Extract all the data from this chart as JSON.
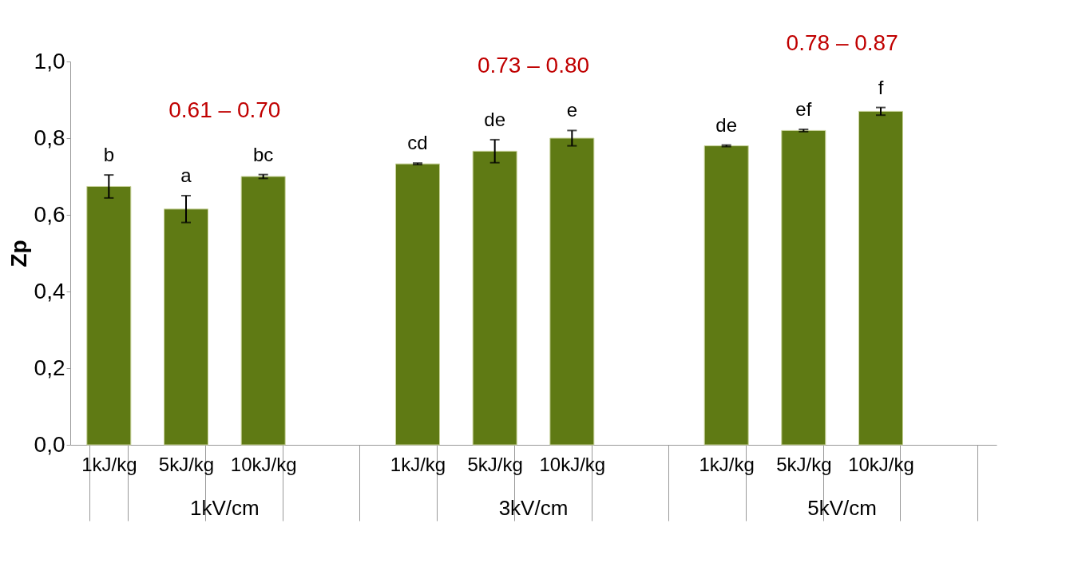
{
  "chart_data": {
    "type": "bar",
    "ylabel": "Zp",
    "categories": [
      "1kJ/kg",
      "5kJ/kg",
      "10kJ/kg",
      null,
      "1kJ/kg",
      "5kJ/kg",
      "10kJ/kg",
      null,
      "1kJ/kg",
      "5kJ/kg",
      "10kJ/kg",
      null
    ],
    "values": [
      0.674,
      0.615,
      0.7,
      null,
      0.733,
      0.766,
      0.8,
      null,
      0.78,
      0.82,
      0.87,
      null
    ],
    "errors": [
      0.03,
      0.035,
      0.005,
      null,
      0.002,
      0.03,
      0.02,
      null,
      0.002,
      0.003,
      0.01,
      null
    ],
    "value_labels": [
      "b",
      "a",
      "bc",
      null,
      "cd",
      "de",
      "e",
      null,
      "de",
      "ef",
      "f",
      null
    ],
    "color": "#5f7a14",
    "ylim": [
      0,
      1
    ],
    "yticks": [
      {
        "value": 0,
        "label": "0,0"
      },
      {
        "value": 0.2,
        "label": "0,2"
      },
      {
        "value": 0.4,
        "label": "0,4"
      },
      {
        "value": 0.6,
        "label": "0,6"
      },
      {
        "value": 0.8,
        "label": "0,8"
      },
      {
        "value": 1,
        "label": "1,0"
      }
    ],
    "annotations": [
      "0.61 – 0.70",
      "0.73 – 0.80",
      "0.78 – 0.87",
      "1kV/cm",
      "3kV/cm",
      "5kV/cm"
    ],
    "grid": false
  }
}
